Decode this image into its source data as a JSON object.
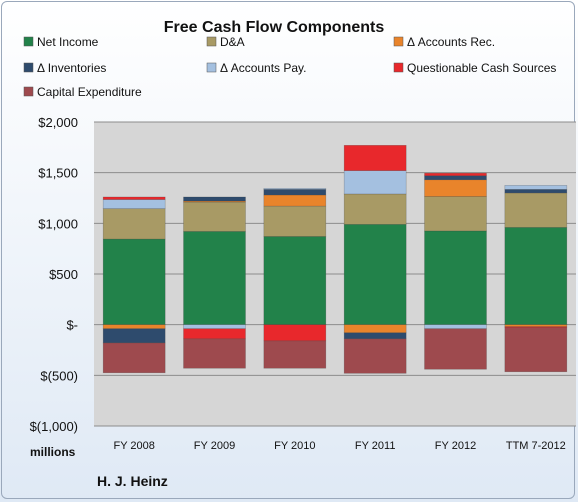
{
  "chart_data": {
    "type": "bar",
    "stacked": true,
    "title": "Free Cash Flow Components",
    "company": "H. J. Heinz",
    "unit_label": "millions",
    "categories": [
      "FY 2008",
      "FY 2009",
      "FY 2010",
      "FY 2011",
      "FY 2012",
      "TTM 7-2012"
    ],
    "ylim": [
      -1000,
      2000
    ],
    "y_tick_values": [
      2000,
      1500,
      1000,
      500,
      0,
      -500,
      -1000
    ],
    "y_tick_labels": [
      "$2,000",
      "$1,500",
      "$1,000",
      "$500",
      "$-",
      "$(500)",
      "$(1,000)"
    ],
    "grid": true,
    "legend_position": "top",
    "series": [
      {
        "name": "Net Income",
        "color": "#22824a",
        "values": [
          845,
          920,
          870,
          990,
          925,
          960
        ]
      },
      {
        "name": "D&A",
        "color": "#a89a65",
        "values": [
          300,
          290,
          300,
          300,
          340,
          340
        ]
      },
      {
        "name": "Δ Accounts Rec.",
        "color": "#e9842b",
        "values": [
          -40,
          10,
          110,
          -80,
          165,
          -20
        ]
      },
      {
        "name": "Δ Inventories",
        "color": "#2e4b6d",
        "values": [
          -140,
          40,
          55,
          -60,
          40,
          35
        ]
      },
      {
        "name": "Δ Accounts Pay.",
        "color": "#a4c0e0",
        "values": [
          90,
          -40,
          10,
          230,
          -40,
          40
        ]
      },
      {
        "name": "Questionable Cash Sources",
        "color": "#e8282c",
        "values": [
          25,
          -100,
          -160,
          250,
          25,
          -10
        ]
      },
      {
        "name": "Capital Expenditure",
        "color": "#9e4a4e",
        "values": [
          -295,
          -290,
          -270,
          -340,
          -400,
          -435
        ]
      }
    ]
  }
}
